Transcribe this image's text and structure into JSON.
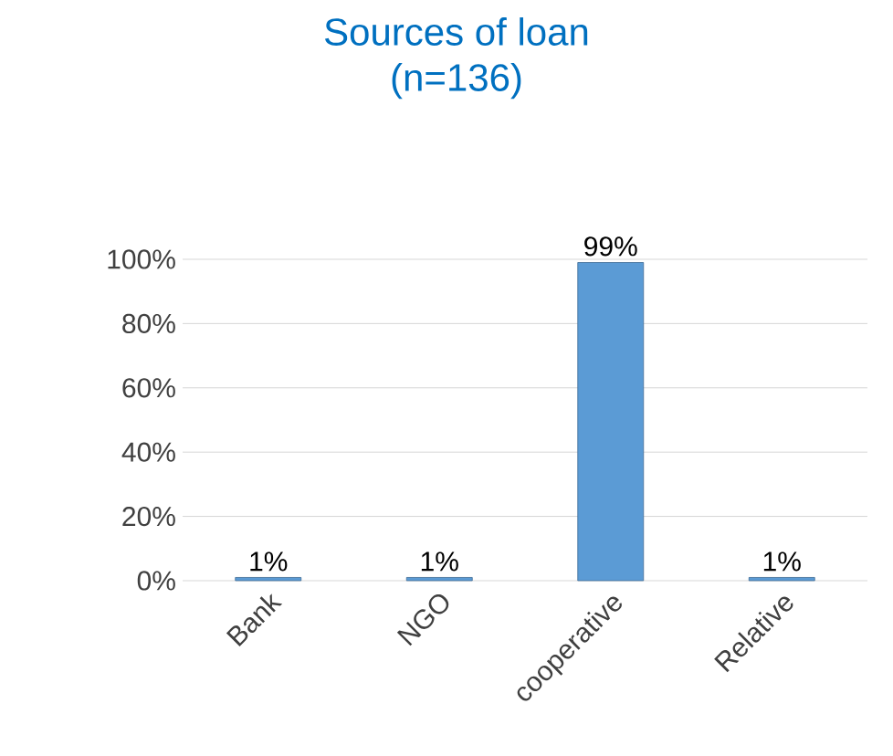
{
  "chart_data": {
    "type": "bar",
    "title": "Sources of loan",
    "subtitle": "(n=136)",
    "categories": [
      "Bank",
      "NGO",
      "cooperative",
      "Relative"
    ],
    "values": [
      1,
      1,
      99,
      1
    ],
    "value_labels": [
      "1%",
      "1%",
      "99%",
      "1%"
    ],
    "color": "#5b9bd5",
    "ylim": [
      0,
      100
    ],
    "yticks": [
      {
        "value": 0,
        "label": "0%"
      },
      {
        "value": 20,
        "label": "20%"
      },
      {
        "value": 40,
        "label": "40%"
      },
      {
        "value": 60,
        "label": "60%"
      },
      {
        "value": 80,
        "label": "80%"
      },
      {
        "value": 100,
        "label": "100%"
      }
    ],
    "grid": true
  }
}
